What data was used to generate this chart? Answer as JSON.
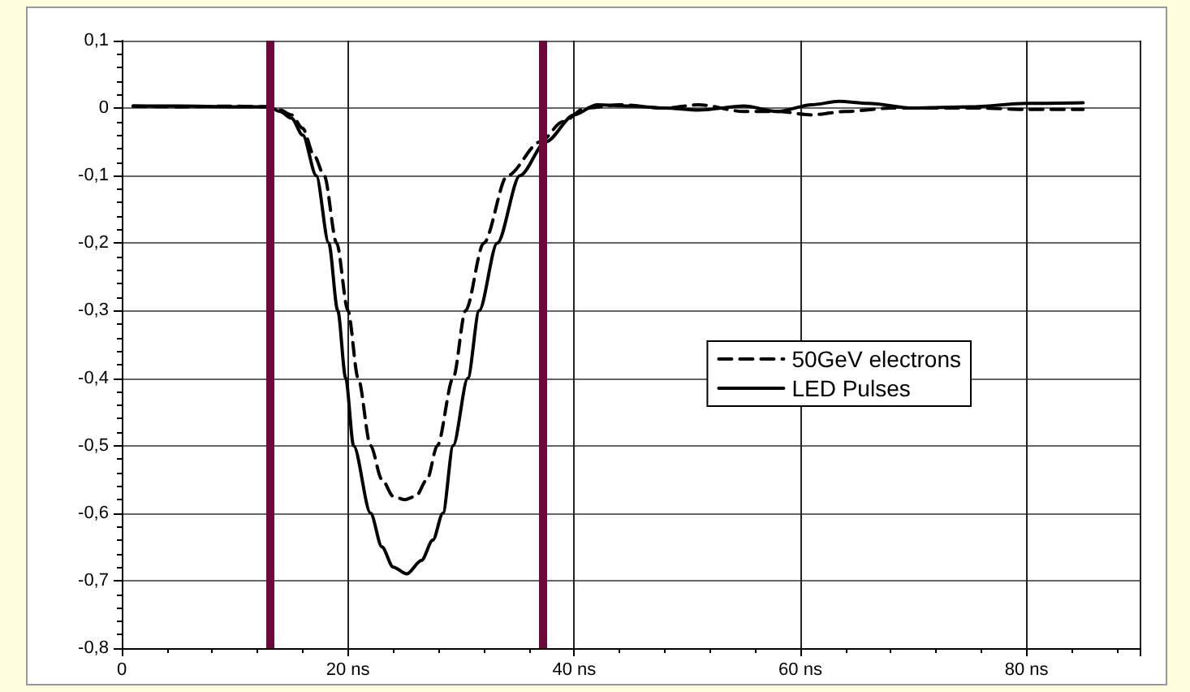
{
  "chart_data": {
    "type": "line",
    "xlim": [
      0,
      90
    ],
    "ylim": [
      -0.8,
      0.1
    ],
    "xticks": [
      0,
      {
        "value": 20,
        "label": "20 ns"
      },
      {
        "value": 40,
        "label": "40 ns"
      },
      {
        "value": 60,
        "label": "60 ns"
      },
      {
        "value": 80,
        "label": "80 ns"
      }
    ],
    "yticks": [
      {
        "value": 0.1,
        "label": "0,1"
      },
      0,
      {
        "value": -0.1,
        "label": "-0,1"
      },
      {
        "value": -0.2,
        "label": "-0,2"
      },
      {
        "value": -0.3,
        "label": "-0,3"
      },
      {
        "value": -0.4,
        "label": "-0,4"
      },
      {
        "value": -0.5,
        "label": "-0,5"
      },
      {
        "value": -0.6,
        "label": "-0,6"
      },
      {
        "value": -0.7,
        "label": "-0,7"
      },
      {
        "value": -0.8,
        "label": "-0,8"
      }
    ],
    "grid": true,
    "legend": "right",
    "marker": "none",
    "ref_lines": [
      {
        "axis": "x",
        "value": 13.1,
        "color": "#6b0a3a"
      },
      {
        "axis": "x",
        "value": 37.2,
        "color": "#6b0a3a"
      }
    ],
    "series": [
      {
        "name": "50GeV electrons",
        "color": "#000000",
        "line_style": "dashed",
        "x": [
          1,
          5,
          10,
          13,
          14,
          15,
          16,
          17,
          17.9,
          19,
          20,
          20.9,
          22,
          23,
          24,
          25,
          26,
          27,
          27.9,
          29.3,
          30.4,
          32,
          34.1,
          37,
          39,
          41,
          44,
          48,
          51,
          55,
          58,
          61,
          64,
          68,
          72,
          76,
          80,
          85
        ],
        "values": [
          0.003,
          0.002,
          0.003,
          0.002,
          -0.003,
          -0.01,
          -0.03,
          -0.07,
          -0.1,
          -0.2,
          -0.3,
          -0.4,
          -0.5,
          -0.55,
          -0.575,
          -0.58,
          -0.575,
          -0.55,
          -0.5,
          -0.4,
          -0.3,
          -0.2,
          -0.1,
          -0.05,
          -0.02,
          0,
          0.005,
          0,
          0.005,
          -0.005,
          -0.005,
          -0.01,
          -0.005,
          0,
          0,
          0,
          -0.002,
          -0.002
        ]
      },
      {
        "name": "LED Pulses",
        "color": "#000000",
        "line_style": "solid",
        "x": [
          1,
          5,
          10,
          13,
          14,
          15,
          16,
          17.2,
          18.3,
          19.1,
          19.8,
          20.5,
          22,
          23,
          24,
          25.2,
          26.5,
          27.5,
          28.4,
          29.3,
          30.6,
          31.6,
          33.2,
          35.2,
          37.5,
          40,
          42,
          45,
          48,
          51,
          55,
          58,
          61,
          63.4,
          66,
          70,
          75,
          80,
          85
        ],
        "values": [
          0.003,
          0.003,
          0.002,
          0.002,
          -0.005,
          -0.015,
          -0.04,
          -0.1,
          -0.2,
          -0.3,
          -0.4,
          -0.5,
          -0.6,
          -0.65,
          -0.68,
          -0.69,
          -0.67,
          -0.64,
          -0.6,
          -0.5,
          -0.4,
          -0.3,
          -0.2,
          -0.1,
          -0.05,
          -0.01,
          0.005,
          0.003,
          0,
          -0.003,
          0.003,
          -0.005,
          0.005,
          0.01,
          0.007,
          0,
          0.002,
          0.007,
          0.008
        ]
      }
    ]
  }
}
